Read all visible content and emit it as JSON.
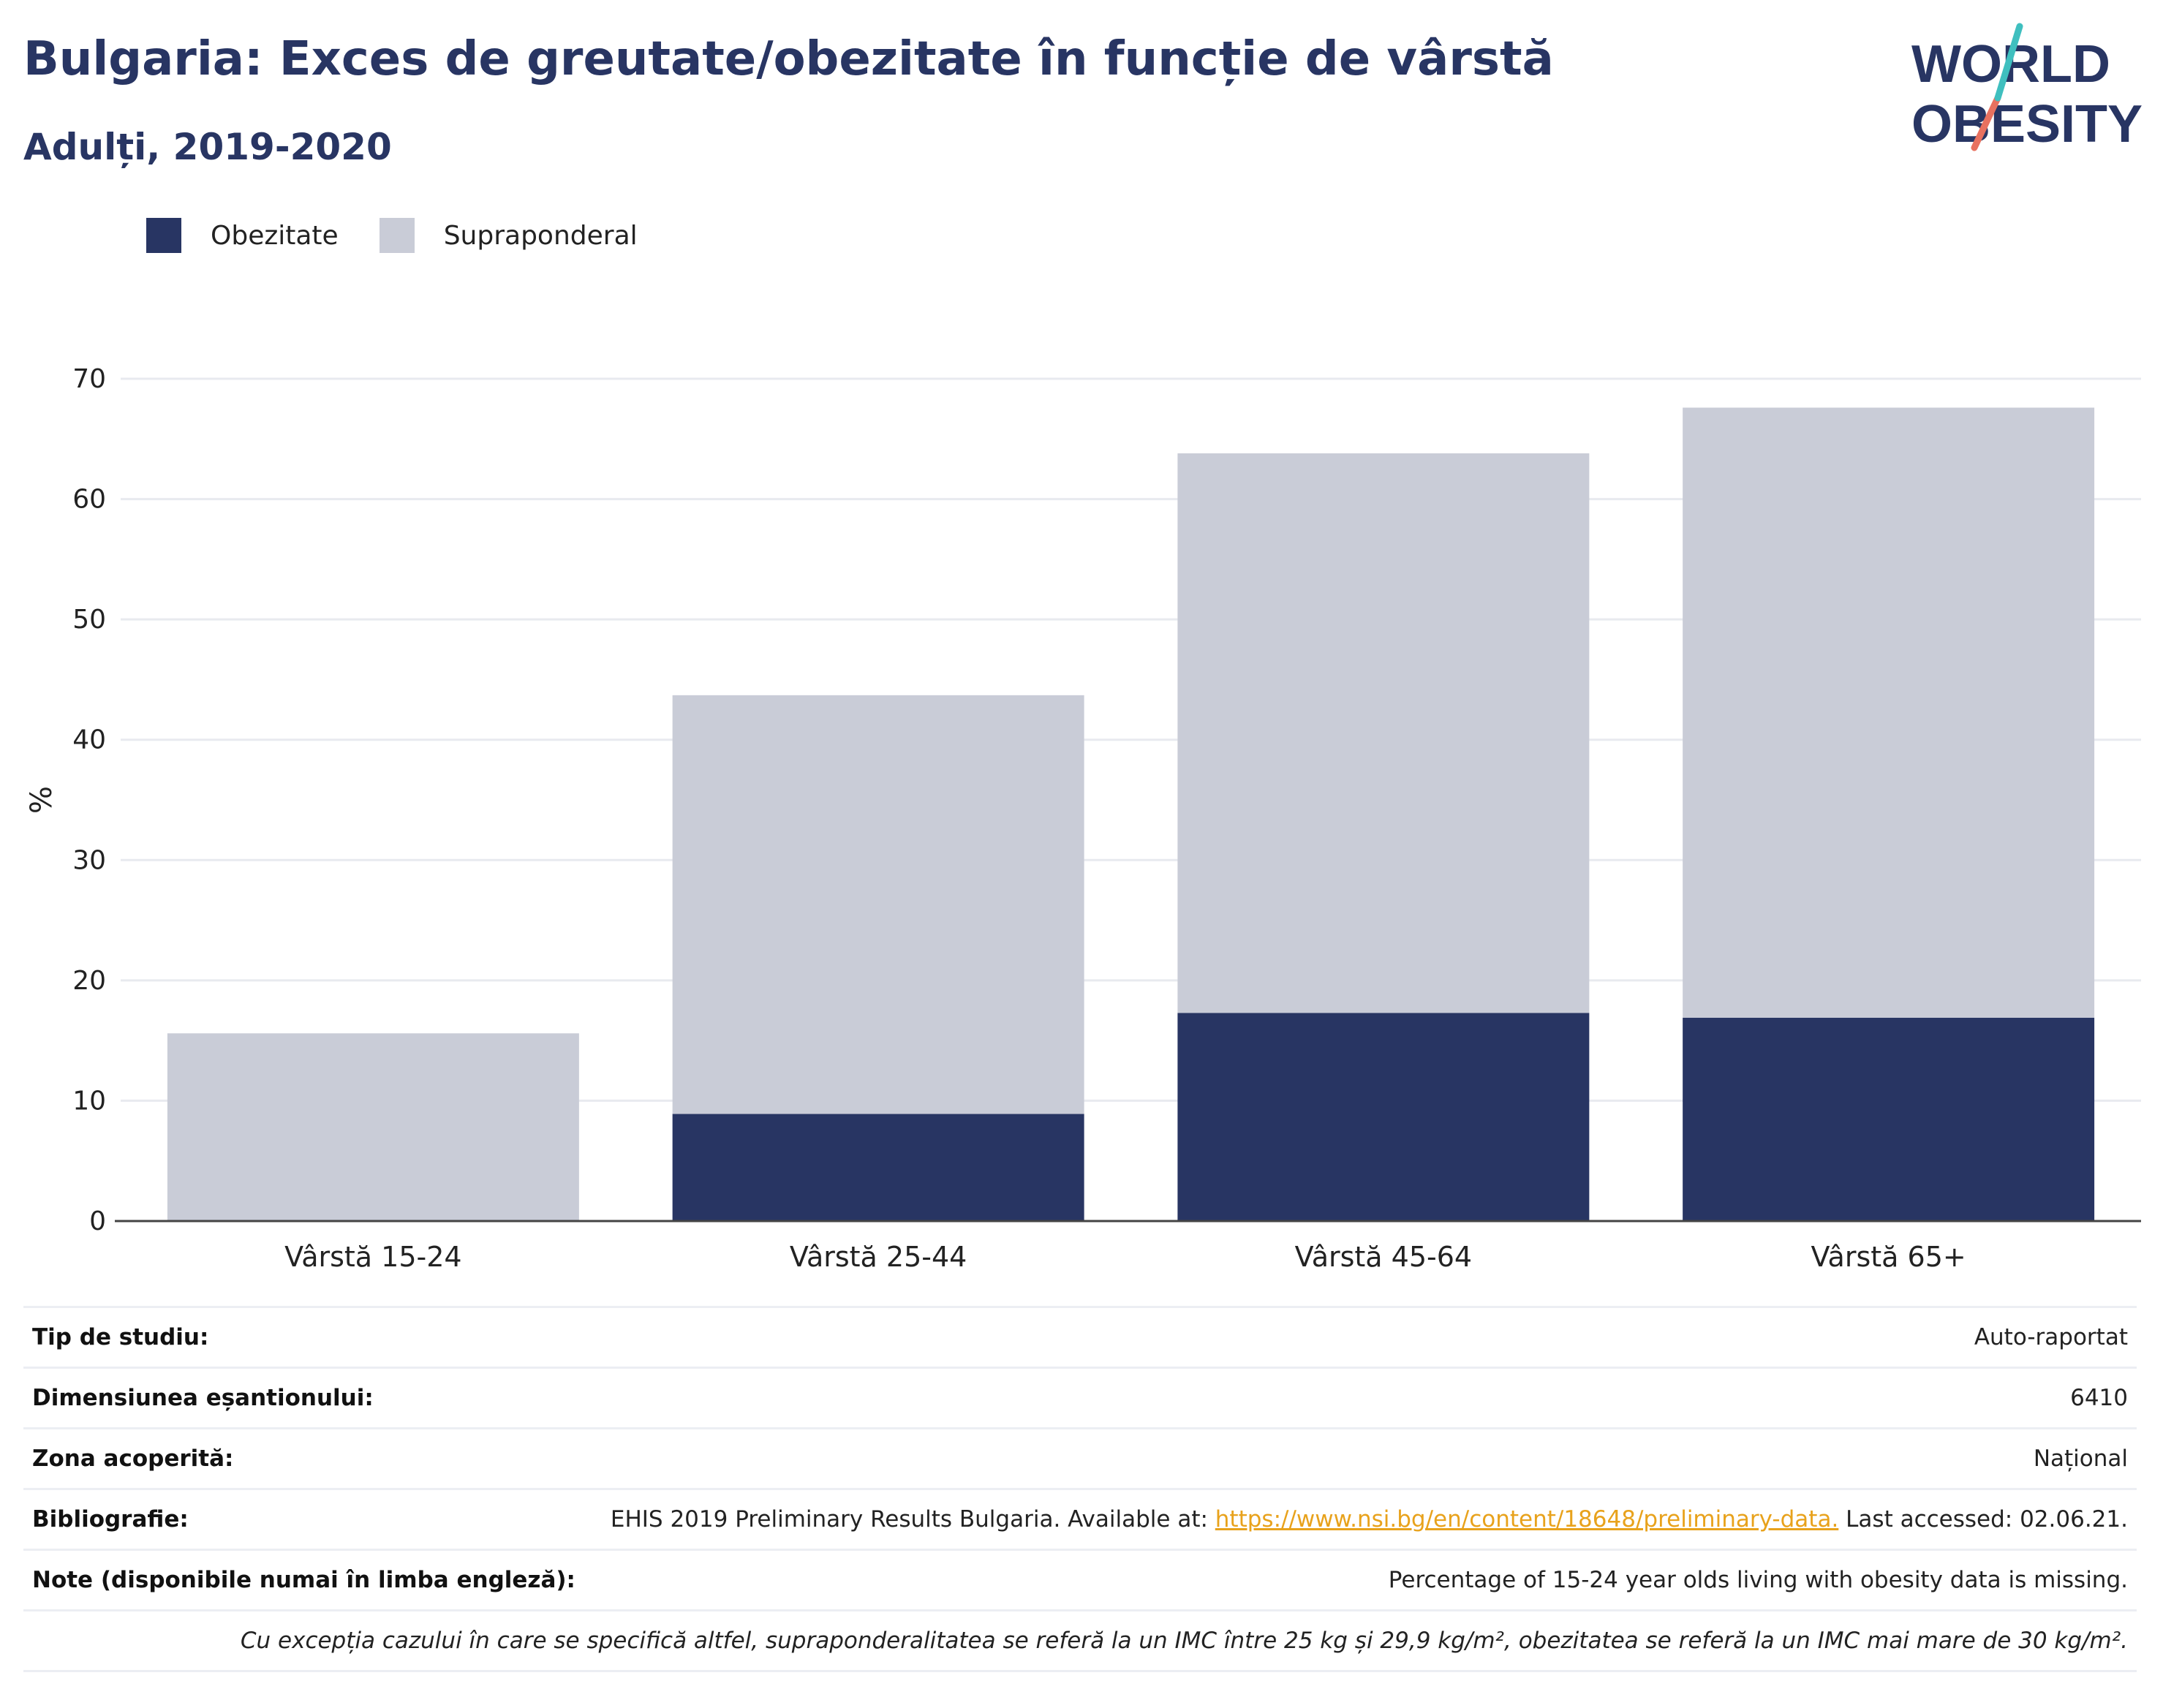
{
  "title": "Bulgaria: Exces de greutate/obezitate în funcție de vârstă",
  "subtitle": "Adulți, 2019-2020",
  "logo": {
    "line1": "WORLD",
    "line2": "OBESITY"
  },
  "colors": {
    "obesity": "#283563",
    "overweight": "#c9ccd7",
    "title": "#283563",
    "link": "#e8a21c"
  },
  "chart_data": {
    "type": "bar",
    "stacked": true,
    "categories": [
      "Vârstă 15-24",
      "Vârstă 25-44",
      "Vârstă 45-64",
      "Vârstă 65+"
    ],
    "series": [
      {
        "name": "Obezitate",
        "values": [
          null,
          8.9,
          17.3,
          16.9
        ],
        "color": "#283563"
      },
      {
        "name": "Supraponderal",
        "values": [
          15.6,
          34.8,
          46.5,
          50.7
        ],
        "color": "#c9ccd7"
      }
    ],
    "ylabel": "%",
    "ylim": [
      0,
      70
    ],
    "yticks": [
      0,
      10,
      20,
      30,
      40,
      50,
      60,
      70
    ],
    "grid": true,
    "legend_position": "top-left"
  },
  "info": {
    "rows": [
      {
        "key": "Tip de studiu:",
        "value": "Auto-raportat"
      },
      {
        "key": "Dimensiunea eșantionului:",
        "value": "6410"
      },
      {
        "key": "Zona acoperită:",
        "value": "Național"
      }
    ],
    "bibliography": {
      "key": "Bibliografie:",
      "before": "EHIS 2019 Preliminary Results Bulgaria. Available at: ",
      "link": "https://www.nsi.bg/en/content/18648/preliminary-data.",
      "after": " Last accessed: 02.06.21."
    },
    "notes": {
      "key": "Note (disponibile numai în limba engleză):",
      "value": "Percentage of 15-24 year olds living with obesity data is missing."
    },
    "footnote": "Cu excepția cazului în care se specifică altfel, supraponderalitatea se referă la un IMC între 25 kg și 29,9 kg/m², obezitatea se referă la un IMC mai mare de 30 kg/m²."
  }
}
